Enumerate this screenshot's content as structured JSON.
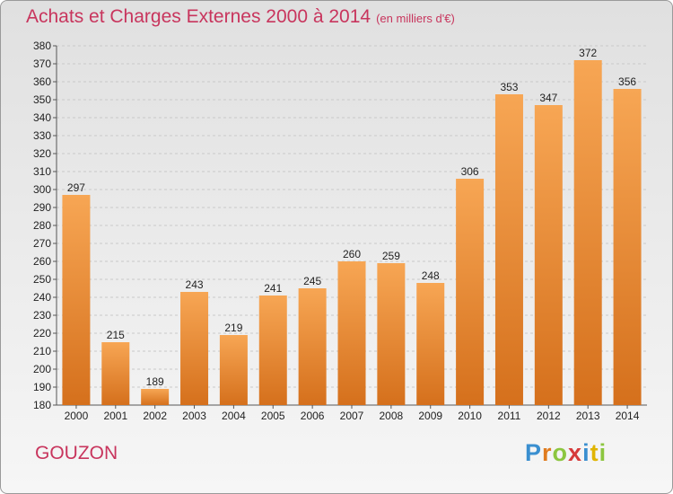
{
  "header": {
    "title": "Achats et Charges Externes 2000 à 2014",
    "subtitle": "(en milliers d'€)"
  },
  "commune": "GOUZON",
  "logo": {
    "letters": [
      "P",
      "r",
      "o",
      "x",
      "i",
      "t",
      "i"
    ],
    "colors": [
      "#3a8fd0",
      "#e07b1e",
      "#8cc63f",
      "#d63a3a",
      "#3a8fd0",
      "#e0b400",
      "#8cc63f"
    ]
  },
  "colors": {
    "bar_light": "#f7a654",
    "bar_dark": "#d5701c",
    "title": "#c8355d"
  },
  "chart_data": {
    "type": "bar",
    "categories": [
      "2000",
      "2001",
      "2002",
      "2003",
      "2004",
      "2005",
      "2006",
      "2007",
      "2008",
      "2009",
      "2010",
      "2011",
      "2012",
      "2013",
      "2014"
    ],
    "values": [
      297,
      215,
      189,
      243,
      219,
      241,
      245,
      260,
      259,
      248,
      306,
      353,
      347,
      372,
      356
    ],
    "title": "Achats et Charges Externes 2000 à 2014",
    "ylim": [
      180,
      380
    ],
    "yticks": [
      180,
      190,
      200,
      210,
      220,
      230,
      240,
      250,
      260,
      270,
      280,
      290,
      300,
      310,
      320,
      330,
      340,
      350,
      360,
      370,
      380
    ],
    "grid": true
  }
}
